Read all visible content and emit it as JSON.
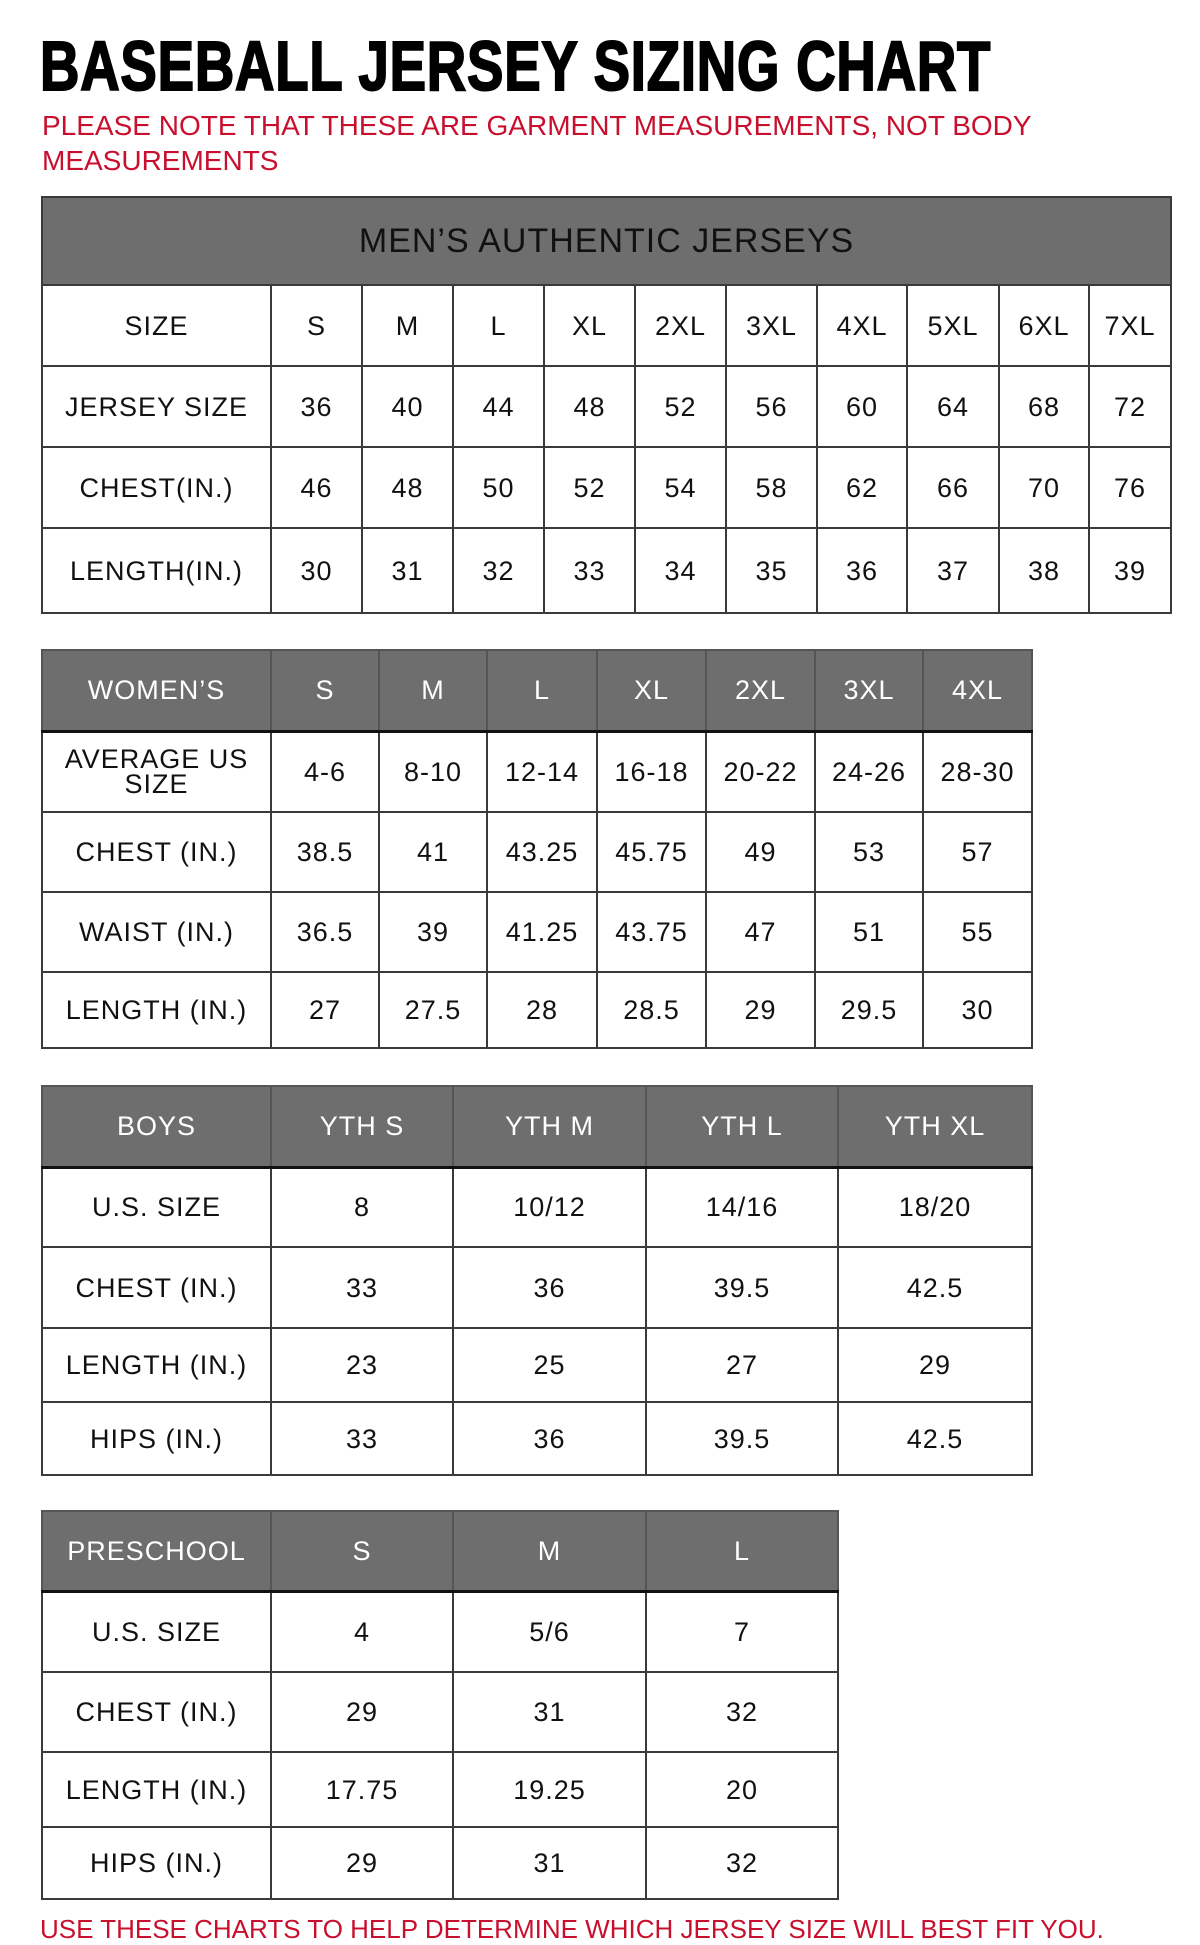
{
  "title": "BASEBALL JERSEY SIZING CHART",
  "note": "PLEASE NOTE THAT THESE ARE GARMENT MEASUREMENTS, NOT BODY MEASUREMENTS",
  "footer": "USE THESE CHARTS TO HELP DETERMINE WHICH JERSEY SIZE WILL BEST FIT YOU.",
  "colors": {
    "header_bg": "#6e6e6e",
    "note_red": "#c8102e"
  },
  "tables": [
    {
      "id": "mens",
      "caption": "MEN’S AUTHENTIC JERSEYS",
      "header": [
        "SIZE",
        "S",
        "M",
        "L",
        "XL",
        "2XL",
        "3XL",
        "4XL",
        "5XL",
        "6XL",
        "7XL"
      ],
      "header_is_dark": false,
      "rows": [
        [
          "JERSEY SIZE",
          "36",
          "40",
          "44",
          "48",
          "52",
          "56",
          "60",
          "64",
          "68",
          "72"
        ],
        [
          "CHEST(IN.)",
          "46",
          "48",
          "50",
          "52",
          "54",
          "58",
          "62",
          "66",
          "70",
          "76"
        ],
        [
          "LENGTH(IN.)",
          "30",
          "31",
          "32",
          "33",
          "34",
          "35",
          "36",
          "37",
          "38",
          "39"
        ]
      ]
    },
    {
      "id": "womens",
      "header": [
        "WOMEN’S",
        "S",
        "M",
        "L",
        "XL",
        "2XL",
        "3XL",
        "4XL"
      ],
      "header_is_dark": true,
      "rows": [
        [
          "AVERAGE US SIZE",
          "4-6",
          "8-10",
          "12-14",
          "16-18",
          "20-22",
          "24-26",
          "28-30"
        ],
        [
          "CHEST (IN.)",
          "38.5",
          "41",
          "43.25",
          "45.75",
          "49",
          "53",
          "57"
        ],
        [
          "WAIST (IN.)",
          "36.5",
          "39",
          "41.25",
          "43.75",
          "47",
          "51",
          "55"
        ],
        [
          "LENGTH (IN.)",
          "27",
          "27.5",
          "28",
          "28.5",
          "29",
          "29.5",
          "30"
        ]
      ]
    },
    {
      "id": "boys",
      "header": [
        "BOYS",
        "YTH S",
        "YTH M",
        "YTH L",
        "YTH XL"
      ],
      "header_is_dark": true,
      "rows": [
        [
          "U.S. SIZE",
          "8",
          "10/12",
          "14/16",
          "18/20"
        ],
        [
          "CHEST (IN.)",
          "33",
          "36",
          "39.5",
          "42.5"
        ],
        [
          "LENGTH (IN.)",
          "23",
          "25",
          "27",
          "29"
        ],
        [
          "HIPS (IN.)",
          "33",
          "36",
          "39.5",
          "42.5"
        ]
      ]
    },
    {
      "id": "preschool",
      "header": [
        "PRESCHOOL",
        "S",
        "M",
        "L"
      ],
      "header_is_dark": true,
      "rows": [
        [
          "U.S. SIZE",
          "4",
          "5/6",
          "7"
        ],
        [
          "CHEST (IN.)",
          "29",
          "31",
          "32"
        ],
        [
          "LENGTH (IN.)",
          "17.75",
          "19.25",
          "20"
        ],
        [
          "HIPS (IN.)",
          "29",
          "31",
          "32"
        ]
      ]
    }
  ]
}
